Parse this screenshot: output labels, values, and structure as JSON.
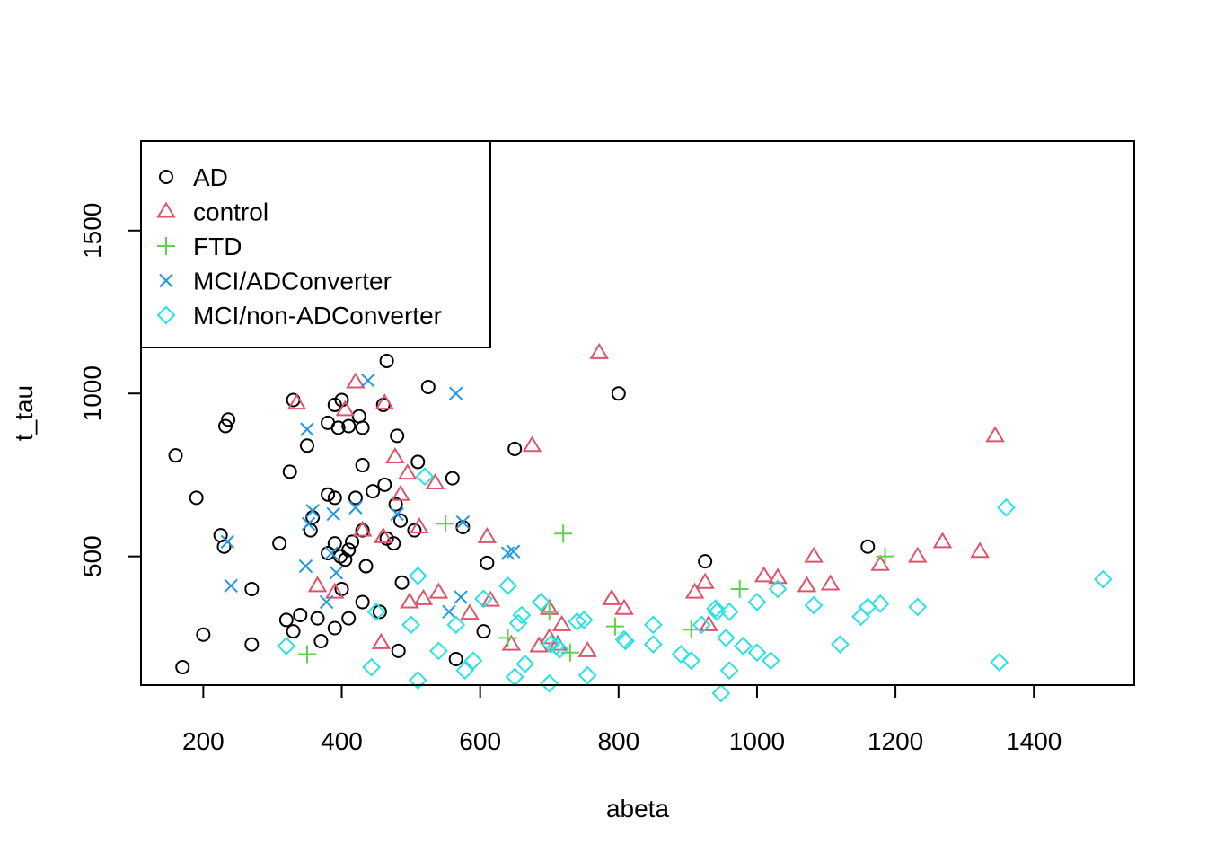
{
  "chart_data": {
    "type": "scatter",
    "title": "",
    "xlabel": "abeta",
    "ylabel": "t_tau",
    "xlim": [
      110,
      1545
    ],
    "ylim": [
      105,
      1775
    ],
    "xticks": [
      200,
      400,
      600,
      800,
      1000,
      1200,
      1400
    ],
    "yticks": [
      500,
      1000,
      1500
    ],
    "grid": false,
    "legend_position": "top-left",
    "series": [
      {
        "name": "AD",
        "marker": "circle",
        "color": "#000000",
        "points": [
          [
            160,
            810
          ],
          [
            170,
            160
          ],
          [
            190,
            680
          ],
          [
            200,
            260
          ],
          [
            225,
            565
          ],
          [
            230,
            530
          ],
          [
            232,
            900
          ],
          [
            236,
            920
          ],
          [
            270,
            400
          ],
          [
            270,
            230
          ],
          [
            310,
            540
          ],
          [
            320,
            305
          ],
          [
            325,
            760
          ],
          [
            330,
            980
          ],
          [
            330,
            270
          ],
          [
            340,
            320
          ],
          [
            350,
            840
          ],
          [
            355,
            580
          ],
          [
            358,
            620
          ],
          [
            365,
            310
          ],
          [
            370,
            240
          ],
          [
            380,
            690
          ],
          [
            380,
            510
          ],
          [
            380,
            910
          ],
          [
            390,
            965
          ],
          [
            390,
            680
          ],
          [
            390,
            540
          ],
          [
            390,
            280
          ],
          [
            395,
            895
          ],
          [
            398,
            500
          ],
          [
            400,
            400
          ],
          [
            400,
            980
          ],
          [
            405,
            490
          ],
          [
            410,
            900
          ],
          [
            410,
            520
          ],
          [
            410,
            310
          ],
          [
            415,
            545
          ],
          [
            420,
            680
          ],
          [
            425,
            930
          ],
          [
            430,
            360
          ],
          [
            430,
            780
          ],
          [
            430,
            895
          ],
          [
            430,
            580
          ],
          [
            435,
            470
          ],
          [
            445,
            700
          ],
          [
            455,
            330
          ],
          [
            460,
            965
          ],
          [
            462,
            720
          ],
          [
            465,
            555
          ],
          [
            465,
            1100
          ],
          [
            475,
            540
          ],
          [
            478,
            660
          ],
          [
            480,
            870
          ],
          [
            482,
            210
          ],
          [
            485,
            610
          ],
          [
            487,
            420
          ],
          [
            505,
            580
          ],
          [
            510,
            790
          ],
          [
            525,
            1020
          ],
          [
            560,
            740
          ],
          [
            565,
            185
          ],
          [
            575,
            590
          ],
          [
            605,
            270
          ],
          [
            610,
            480
          ],
          [
            650,
            830
          ],
          [
            800,
            1000
          ],
          [
            925,
            485
          ],
          [
            1160,
            530
          ]
        ]
      },
      {
        "name": "control",
        "marker": "triangle",
        "color": "#DF536B",
        "points": [
          [
            335,
            970
          ],
          [
            365,
            410
          ],
          [
            390,
            390
          ],
          [
            405,
            950
          ],
          [
            420,
            1035
          ],
          [
            430,
            580
          ],
          [
            457,
            235
          ],
          [
            460,
            560
          ],
          [
            462,
            970
          ],
          [
            477,
            805
          ],
          [
            485,
            690
          ],
          [
            495,
            755
          ],
          [
            498,
            360
          ],
          [
            512,
            590
          ],
          [
            518,
            370
          ],
          [
            535,
            725
          ],
          [
            540,
            390
          ],
          [
            585,
            325
          ],
          [
            610,
            560
          ],
          [
            615,
            365
          ],
          [
            645,
            230
          ],
          [
            675,
            840
          ],
          [
            685,
            225
          ],
          [
            700,
            340
          ],
          [
            700,
            250
          ],
          [
            712,
            230
          ],
          [
            718,
            290
          ],
          [
            755,
            210
          ],
          [
            772,
            1125
          ],
          [
            790,
            370
          ],
          [
            808,
            340
          ],
          [
            910,
            390
          ],
          [
            925,
            420
          ],
          [
            930,
            290
          ],
          [
            1010,
            440
          ],
          [
            1030,
            435
          ],
          [
            1072,
            410
          ],
          [
            1082,
            500
          ],
          [
            1106,
            415
          ],
          [
            1178,
            475
          ],
          [
            1232,
            500
          ],
          [
            1268,
            545
          ],
          [
            1322,
            515
          ],
          [
            1344,
            870
          ]
        ]
      },
      {
        "name": "FTD",
        "marker": "plus",
        "color": "#61D04F",
        "points": [
          [
            350,
            200
          ],
          [
            550,
            600
          ],
          [
            640,
            250
          ],
          [
            700,
            330
          ],
          [
            720,
            570
          ],
          [
            730,
            205
          ],
          [
            795,
            285
          ],
          [
            905,
            275
          ],
          [
            975,
            400
          ],
          [
            1185,
            500
          ]
        ]
      },
      {
        "name": "MCI/ADConverter",
        "marker": "x",
        "color": "#2297E6",
        "points": [
          [
            235,
            545
          ],
          [
            240,
            410
          ],
          [
            348,
            470
          ],
          [
            350,
            890
          ],
          [
            352,
            600
          ],
          [
            358,
            640
          ],
          [
            378,
            360
          ],
          [
            385,
            510
          ],
          [
            388,
            630
          ],
          [
            392,
            450
          ],
          [
            420,
            650
          ],
          [
            438,
            1040
          ],
          [
            480,
            630
          ],
          [
            555,
            330
          ],
          [
            565,
            1000
          ],
          [
            572,
            375
          ],
          [
            575,
            605
          ],
          [
            640,
            510
          ],
          [
            648,
            515
          ]
        ]
      },
      {
        "name": "MCI/non-ADConverter",
        "marker": "diamond",
        "color": "#28E2E5",
        "points": [
          [
            320,
            225
          ],
          [
            443,
            160
          ],
          [
            450,
            330
          ],
          [
            500,
            290
          ],
          [
            510,
            440
          ],
          [
            510,
            120
          ],
          [
            520,
            745
          ],
          [
            540,
            210
          ],
          [
            565,
            290
          ],
          [
            578,
            150
          ],
          [
            590,
            180
          ],
          [
            605,
            370
          ],
          [
            640,
            410
          ],
          [
            650,
            130
          ],
          [
            655,
            295
          ],
          [
            660,
            320
          ],
          [
            665,
            170
          ],
          [
            688,
            360
          ],
          [
            700,
            110
          ],
          [
            702,
            230
          ],
          [
            710,
            225
          ],
          [
            715,
            215
          ],
          [
            740,
            300
          ],
          [
            750,
            305
          ],
          [
            755,
            135
          ],
          [
            810,
            240
          ],
          [
            850,
            290
          ],
          [
            850,
            230
          ],
          [
            890,
            200
          ],
          [
            905,
            180
          ],
          [
            920,
            290
          ],
          [
            940,
            340
          ],
          [
            955,
            250
          ],
          [
            960,
            330
          ],
          [
            960,
            150
          ],
          [
            980,
            225
          ],
          [
            1000,
            360
          ],
          [
            1000,
            205
          ],
          [
            1020,
            180
          ],
          [
            1030,
            400
          ],
          [
            1082,
            350
          ],
          [
            1120,
            230
          ],
          [
            1150,
            315
          ],
          [
            1160,
            345
          ],
          [
            1178,
            355
          ],
          [
            1232,
            345
          ],
          [
            1350,
            175
          ],
          [
            1360,
            650
          ],
          [
            1500,
            430
          ],
          [
            948,
            80
          ],
          [
            808,
            245
          ],
          [
            942,
            330
          ]
        ]
      }
    ]
  }
}
